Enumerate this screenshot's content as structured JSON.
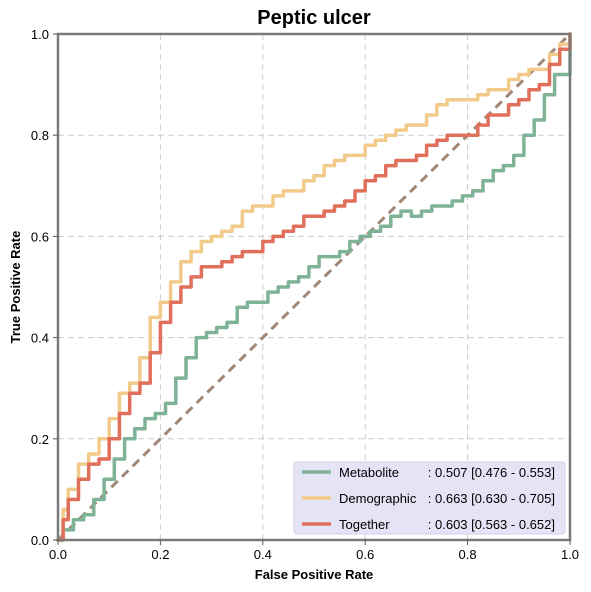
{
  "chart_data": {
    "type": "line",
    "title": "Peptic ulcer",
    "xlabel": "False Positive Rate",
    "ylabel": "True Positive Rate",
    "xlim": [
      0,
      1
    ],
    "ylim": [
      0,
      1
    ],
    "xticks": [
      "0.0",
      "0.2",
      "0.4",
      "0.6",
      "0.8",
      "1.0"
    ],
    "yticks": [
      "0.0",
      "0.2",
      "0.4",
      "0.6",
      "0.8",
      "1.0"
    ],
    "grid": true,
    "legend_position": "lower-right",
    "diagonal": {
      "x": [
        0,
        1
      ],
      "y": [
        0,
        1
      ],
      "color": "#a08878",
      "style": "dashed"
    },
    "series": [
      {
        "name": "Metabolite",
        "legend_label": "Metabolite",
        "legend_value": ": 0.507 [0.476 - 0.553]",
        "color": "#7fb397",
        "x": [
          0,
          0.01,
          0.03,
          0.05,
          0.07,
          0.09,
          0.11,
          0.13,
          0.15,
          0.17,
          0.19,
          0.21,
          0.23,
          0.25,
          0.27,
          0.29,
          0.31,
          0.33,
          0.35,
          0.37,
          0.39,
          0.41,
          0.43,
          0.45,
          0.47,
          0.49,
          0.51,
          0.53,
          0.55,
          0.57,
          0.59,
          0.61,
          0.63,
          0.65,
          0.67,
          0.69,
          0.71,
          0.73,
          0.75,
          0.77,
          0.79,
          0.81,
          0.83,
          0.85,
          0.87,
          0.89,
          0.91,
          0.93,
          0.95,
          0.97,
          1.0
        ],
        "y": [
          0,
          0.02,
          0.04,
          0.05,
          0.08,
          0.12,
          0.16,
          0.2,
          0.22,
          0.24,
          0.25,
          0.27,
          0.32,
          0.36,
          0.4,
          0.41,
          0.42,
          0.43,
          0.46,
          0.47,
          0.47,
          0.49,
          0.5,
          0.51,
          0.52,
          0.54,
          0.56,
          0.56,
          0.57,
          0.59,
          0.6,
          0.61,
          0.62,
          0.64,
          0.65,
          0.64,
          0.65,
          0.66,
          0.66,
          0.67,
          0.68,
          0.69,
          0.71,
          0.73,
          0.74,
          0.76,
          0.8,
          0.83,
          0.88,
          0.92,
          1.0
        ]
      },
      {
        "name": "Demographic",
        "legend_label": "Demographic",
        "legend_value": ": 0.663 [0.630 - 0.705]",
        "color": "#f2cb8b",
        "x": [
          0,
          0.01,
          0.02,
          0.04,
          0.06,
          0.08,
          0.1,
          0.12,
          0.14,
          0.16,
          0.18,
          0.2,
          0.22,
          0.24,
          0.26,
          0.28,
          0.3,
          0.32,
          0.34,
          0.36,
          0.38,
          0.4,
          0.42,
          0.44,
          0.46,
          0.48,
          0.5,
          0.52,
          0.54,
          0.56,
          0.58,
          0.6,
          0.62,
          0.64,
          0.66,
          0.68,
          0.7,
          0.72,
          0.74,
          0.76,
          0.78,
          0.8,
          0.82,
          0.84,
          0.86,
          0.88,
          0.9,
          0.92,
          0.94,
          0.96,
          0.98,
          1.0
        ],
        "y": [
          0,
          0.06,
          0.1,
          0.15,
          0.17,
          0.2,
          0.24,
          0.29,
          0.31,
          0.36,
          0.44,
          0.47,
          0.51,
          0.55,
          0.57,
          0.59,
          0.6,
          0.61,
          0.62,
          0.65,
          0.66,
          0.66,
          0.68,
          0.69,
          0.69,
          0.71,
          0.72,
          0.74,
          0.75,
          0.76,
          0.76,
          0.78,
          0.79,
          0.8,
          0.81,
          0.82,
          0.82,
          0.84,
          0.86,
          0.87,
          0.87,
          0.87,
          0.88,
          0.89,
          0.89,
          0.91,
          0.92,
          0.93,
          0.93,
          0.96,
          0.98,
          1.0
        ]
      },
      {
        "name": "Together",
        "legend_label": "Together",
        "legend_value": ": 0.603 [0.563 - 0.652]",
        "color": "#e0705c",
        "x": [
          0,
          0.01,
          0.02,
          0.04,
          0.06,
          0.08,
          0.1,
          0.12,
          0.14,
          0.16,
          0.18,
          0.2,
          0.22,
          0.24,
          0.26,
          0.28,
          0.3,
          0.32,
          0.34,
          0.36,
          0.38,
          0.4,
          0.42,
          0.44,
          0.46,
          0.48,
          0.5,
          0.52,
          0.54,
          0.56,
          0.58,
          0.6,
          0.62,
          0.64,
          0.66,
          0.68,
          0.7,
          0.72,
          0.74,
          0.76,
          0.78,
          0.8,
          0.82,
          0.84,
          0.86,
          0.88,
          0.9,
          0.92,
          0.94,
          0.96,
          0.98,
          1.0
        ],
        "y": [
          0,
          0.04,
          0.08,
          0.12,
          0.15,
          0.16,
          0.2,
          0.25,
          0.29,
          0.31,
          0.37,
          0.43,
          0.47,
          0.5,
          0.52,
          0.54,
          0.54,
          0.55,
          0.56,
          0.57,
          0.57,
          0.59,
          0.6,
          0.61,
          0.62,
          0.64,
          0.64,
          0.65,
          0.66,
          0.67,
          0.69,
          0.71,
          0.72,
          0.74,
          0.75,
          0.75,
          0.76,
          0.78,
          0.79,
          0.8,
          0.8,
          0.8,
          0.82,
          0.84,
          0.84,
          0.86,
          0.87,
          0.89,
          0.9,
          0.94,
          0.97,
          1.0
        ]
      }
    ]
  }
}
